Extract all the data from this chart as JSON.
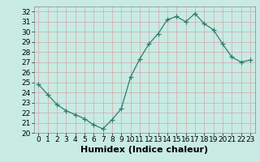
{
  "x": [
    0,
    1,
    2,
    3,
    4,
    5,
    6,
    7,
    8,
    9,
    10,
    11,
    12,
    13,
    14,
    15,
    16,
    17,
    18,
    19,
    20,
    21,
    22,
    23
  ],
  "y": [
    24.8,
    23.8,
    22.8,
    22.2,
    21.8,
    21.4,
    20.8,
    20.4,
    21.3,
    22.4,
    25.5,
    27.3,
    28.8,
    29.8,
    31.2,
    31.5,
    31.0,
    31.8,
    30.8,
    30.2,
    28.8,
    27.5,
    27.0,
    27.2
  ],
  "line_color": "#2e7d6e",
  "marker": "+",
  "marker_size": 4,
  "bg_color": "#c8ebe3",
  "grid_color": "#d4a8a8",
  "xlabel": "Humidex (Indice chaleur)",
  "ylim": [
    20,
    32.5
  ],
  "xlim": [
    -0.5,
    23.5
  ],
  "yticks": [
    20,
    21,
    22,
    23,
    24,
    25,
    26,
    27,
    28,
    29,
    30,
    31,
    32
  ],
  "xticks": [
    0,
    1,
    2,
    3,
    4,
    5,
    6,
    7,
    8,
    9,
    10,
    11,
    12,
    13,
    14,
    15,
    16,
    17,
    18,
    19,
    20,
    21,
    22,
    23
  ],
  "label_fontsize": 8,
  "tick_fontsize": 6.5
}
